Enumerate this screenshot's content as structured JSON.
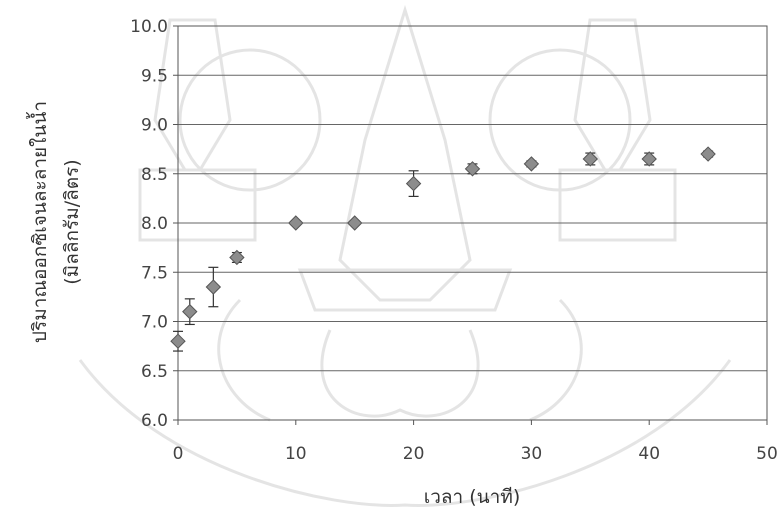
{
  "chart_data": {
    "type": "scatter",
    "title": "",
    "xlabel": "เวลา (นาที)",
    "ylabel_line1": "ปริมาณออกซิเจนละลายในน้ำ",
    "ylabel_line2": "(มิลลิกรัม/ลิตร)",
    "xlim": [
      0,
      50
    ],
    "ylim": [
      6.0,
      10.0
    ],
    "xticks": [
      "0",
      "10",
      "20",
      "30",
      "40",
      "50"
    ],
    "yticks": [
      "6.0",
      "6.5",
      "7.0",
      "7.5",
      "8.0",
      "8.5",
      "9.0",
      "9.5",
      "10.0"
    ],
    "grid": "horizontal",
    "marker": "diamond",
    "marker_color": "#8c8c8c",
    "series": [
      {
        "x": [
          0,
          1,
          3,
          5,
          10,
          15,
          20,
          25,
          30,
          35,
          40,
          45
        ],
        "y": [
          6.8,
          7.1,
          7.35,
          7.65,
          8.0,
          8.0,
          8.4,
          8.55,
          8.6,
          8.65,
          8.65,
          8.7
        ],
        "error": [
          0.1,
          0.13,
          0.2,
          0.05,
          0.02,
          0.02,
          0.13,
          0.05,
          0.03,
          0.06,
          0.06,
          0.03
        ]
      }
    ]
  }
}
